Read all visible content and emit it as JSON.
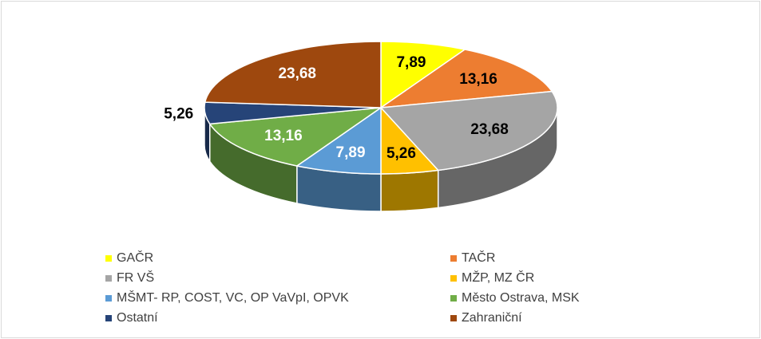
{
  "chart_data": {
    "type": "pie",
    "variant": "3d",
    "legend_position": "bottom",
    "categories": [
      "GAČR",
      "TAČR",
      "FR VŠ",
      "MŽP, MZ ČR",
      "MŠMT- RP, COST, VC, OP VaVpI, OPVK",
      "Město Ostrava, MSK",
      "Ostatní",
      "Zahraniční"
    ],
    "values": [
      7.89,
      13.16,
      23.68,
      5.26,
      7.89,
      13.16,
      5.26,
      23.68
    ],
    "value_labels": [
      "7,89",
      "13,16",
      "23,68",
      "5,26",
      "7,89",
      "13,16",
      "5,26",
      "23,68"
    ],
    "colors": [
      "#ffff00",
      "#ed7d31",
      "#a5a5a5",
      "#ffc000",
      "#5b9bd5",
      "#70ad47",
      "#264478",
      "#9e480e"
    ],
    "label_colors": [
      "#000000",
      "#000000",
      "#000000",
      "#000000",
      "#ffffff",
      "#ffffff",
      "#000000",
      "#ffffff"
    ]
  }
}
